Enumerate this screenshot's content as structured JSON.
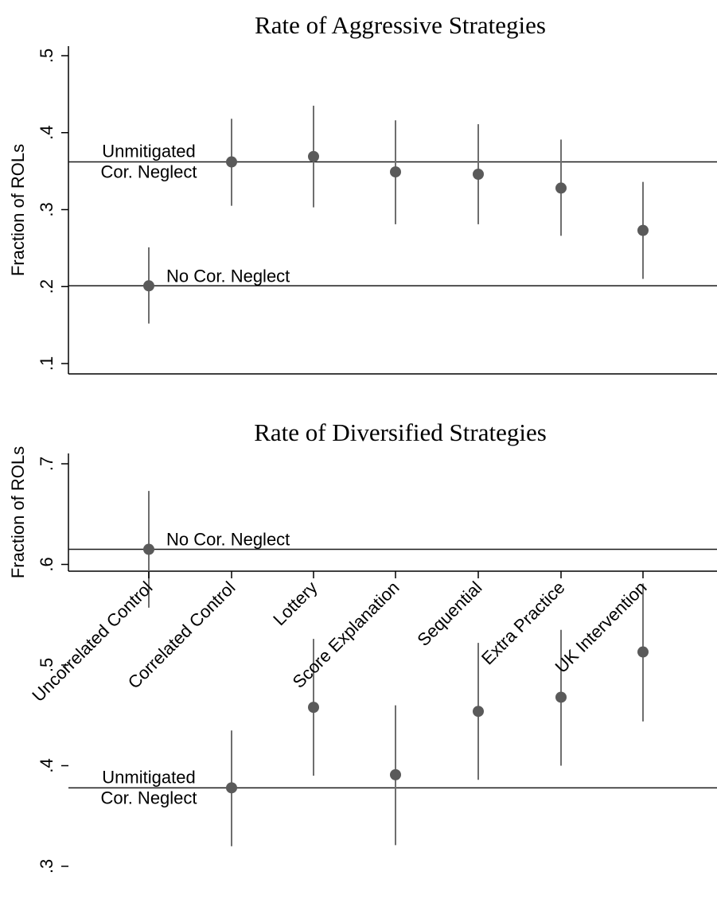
{
  "chart_data": [
    {
      "type": "scatter",
      "title": "Rate of Aggressive Strategies",
      "ylabel": "Fraction of ROLs",
      "xlabel": "",
      "ylim": [
        0.1,
        0.5
      ],
      "yticks": [
        ".1",
        ".2",
        ".3",
        ".4",
        ".5"
      ],
      "categories": [
        "Uncorrelated Control",
        "Correlated Control",
        "Lottery",
        "Score Explanation",
        "Sequential",
        "Extra Practice",
        "UK Intervention"
      ],
      "values": [
        0.201,
        0.362,
        0.369,
        0.349,
        0.346,
        0.328,
        0.273
      ],
      "ci_low": [
        0.152,
        0.305,
        0.303,
        0.281,
        0.281,
        0.266,
        0.21
      ],
      "ci_high": [
        0.251,
        0.418,
        0.435,
        0.416,
        0.411,
        0.391,
        0.336
      ],
      "reference_lines": [
        {
          "y": 0.362,
          "label_line1": "Unmitigated",
          "label_line2": "Cor. Neglect"
        },
        {
          "y": 0.201,
          "label_line1": "No Cor. Neglect",
          "label_line2": ""
        }
      ],
      "grid": false,
      "marker_color": "#5a5a5a",
      "ci_color": "#6e6e6e"
    },
    {
      "type": "scatter",
      "title": "Rate of Diversified Strategies",
      "ylabel": "Fraction of ROLs",
      "xlabel": "",
      "ylim": [
        0.3,
        0.7
      ],
      "yticks": [
        ".3",
        ".4",
        ".5",
        ".6",
        ".7"
      ],
      "categories": [
        "Uncorrelated Control",
        "Correlated Control",
        "Lottery",
        "Score Explanation",
        "Sequential",
        "Extra Practice",
        "UK Intervention"
      ],
      "values": [
        0.615,
        0.378,
        0.458,
        0.391,
        0.454,
        0.468,
        0.513
      ],
      "ci_low": [
        0.557,
        0.32,
        0.39,
        0.321,
        0.386,
        0.4,
        0.444
      ],
      "ci_high": [
        0.673,
        0.435,
        0.526,
        0.46,
        0.522,
        0.535,
        0.581
      ],
      "reference_lines": [
        {
          "y": 0.615,
          "label_line1": "No Cor. Neglect",
          "label_line2": ""
        },
        {
          "y": 0.378,
          "label_line1": "Unmitigated",
          "label_line2": "Cor. Neglect"
        }
      ],
      "grid": false,
      "marker_color": "#5a5a5a",
      "ci_color": "#6e6e6e"
    }
  ]
}
